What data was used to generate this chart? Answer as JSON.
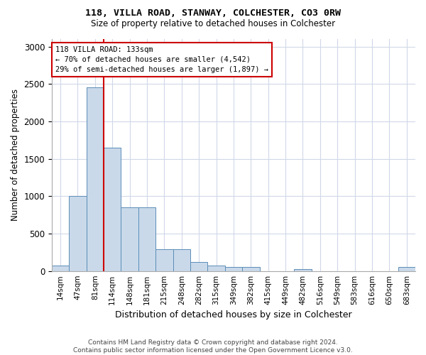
{
  "title1": "118, VILLA ROAD, STANWAY, COLCHESTER, CO3 0RW",
  "title2": "Size of property relative to detached houses in Colchester",
  "xlabel": "Distribution of detached houses by size in Colchester",
  "ylabel": "Number of detached properties",
  "categories": [
    "14sqm",
    "47sqm",
    "81sqm",
    "114sqm",
    "148sqm",
    "181sqm",
    "215sqm",
    "248sqm",
    "282sqm",
    "315sqm",
    "349sqm",
    "382sqm",
    "415sqm",
    "449sqm",
    "482sqm",
    "516sqm",
    "549sqm",
    "583sqm",
    "616sqm",
    "650sqm",
    "683sqm"
  ],
  "values": [
    70,
    1000,
    2450,
    1650,
    850,
    850,
    290,
    290,
    120,
    70,
    55,
    55,
    0,
    0,
    30,
    0,
    0,
    0,
    0,
    0,
    55
  ],
  "bar_color": "#c9d9ea",
  "bar_edge_color": "#5b8db8",
  "vline_x": 2.5,
  "vline_color": "#cc0000",
  "annotation_text": "118 VILLA ROAD: 133sqm\n← 70% of detached houses are smaller (4,542)\n29% of semi-detached houses are larger (1,897) →",
  "annotation_box_color": "white",
  "annotation_box_edge": "#cc0000",
  "ylim": [
    0,
    3100
  ],
  "yticks": [
    0,
    500,
    1000,
    1500,
    2000,
    2500,
    3000
  ],
  "footer1": "Contains HM Land Registry data © Crown copyright and database right 2024.",
  "footer2": "Contains public sector information licensed under the Open Government Licence v3.0.",
  "bg_color": "#ffffff",
  "grid_color": "#d0d8e8"
}
